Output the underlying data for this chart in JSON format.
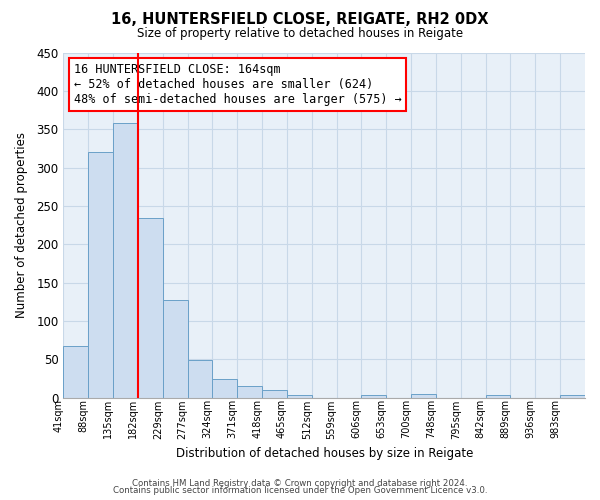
{
  "title": "16, HUNTERSFIELD CLOSE, REIGATE, RH2 0DX",
  "subtitle": "Size of property relative to detached houses in Reigate",
  "xlabel": "Distribution of detached houses by size in Reigate",
  "ylabel": "Number of detached properties",
  "bar_color": "#cdddf0",
  "bar_edge_color": "#6aa0c8",
  "bin_labels": [
    "41sqm",
    "88sqm",
    "135sqm",
    "182sqm",
    "229sqm",
    "277sqm",
    "324sqm",
    "371sqm",
    "418sqm",
    "465sqm",
    "512sqm",
    "559sqm",
    "606sqm",
    "653sqm",
    "700sqm",
    "748sqm",
    "795sqm",
    "842sqm",
    "889sqm",
    "936sqm",
    "983sqm"
  ],
  "bar_values": [
    67,
    320,
    358,
    234,
    127,
    49,
    25,
    15,
    10,
    3,
    0,
    0,
    3,
    0,
    5,
    0,
    0,
    3,
    0,
    0,
    3
  ],
  "ylim": [
    0,
    450
  ],
  "yticks": [
    0,
    50,
    100,
    150,
    200,
    250,
    300,
    350,
    400,
    450
  ],
  "annotation_title": "16 HUNTERSFIELD CLOSE: 164sqm",
  "annotation_line1": "← 52% of detached houses are smaller (624)",
  "annotation_line2": "48% of semi-detached houses are larger (575) →",
  "footer1": "Contains HM Land Registry data © Crown copyright and database right 2024.",
  "footer2": "Contains public sector information licensed under the Open Government Licence v3.0.",
  "background_color": "#ffffff",
  "grid_color": "#c8d8e8",
  "plot_bg_color": "#e8f0f8"
}
